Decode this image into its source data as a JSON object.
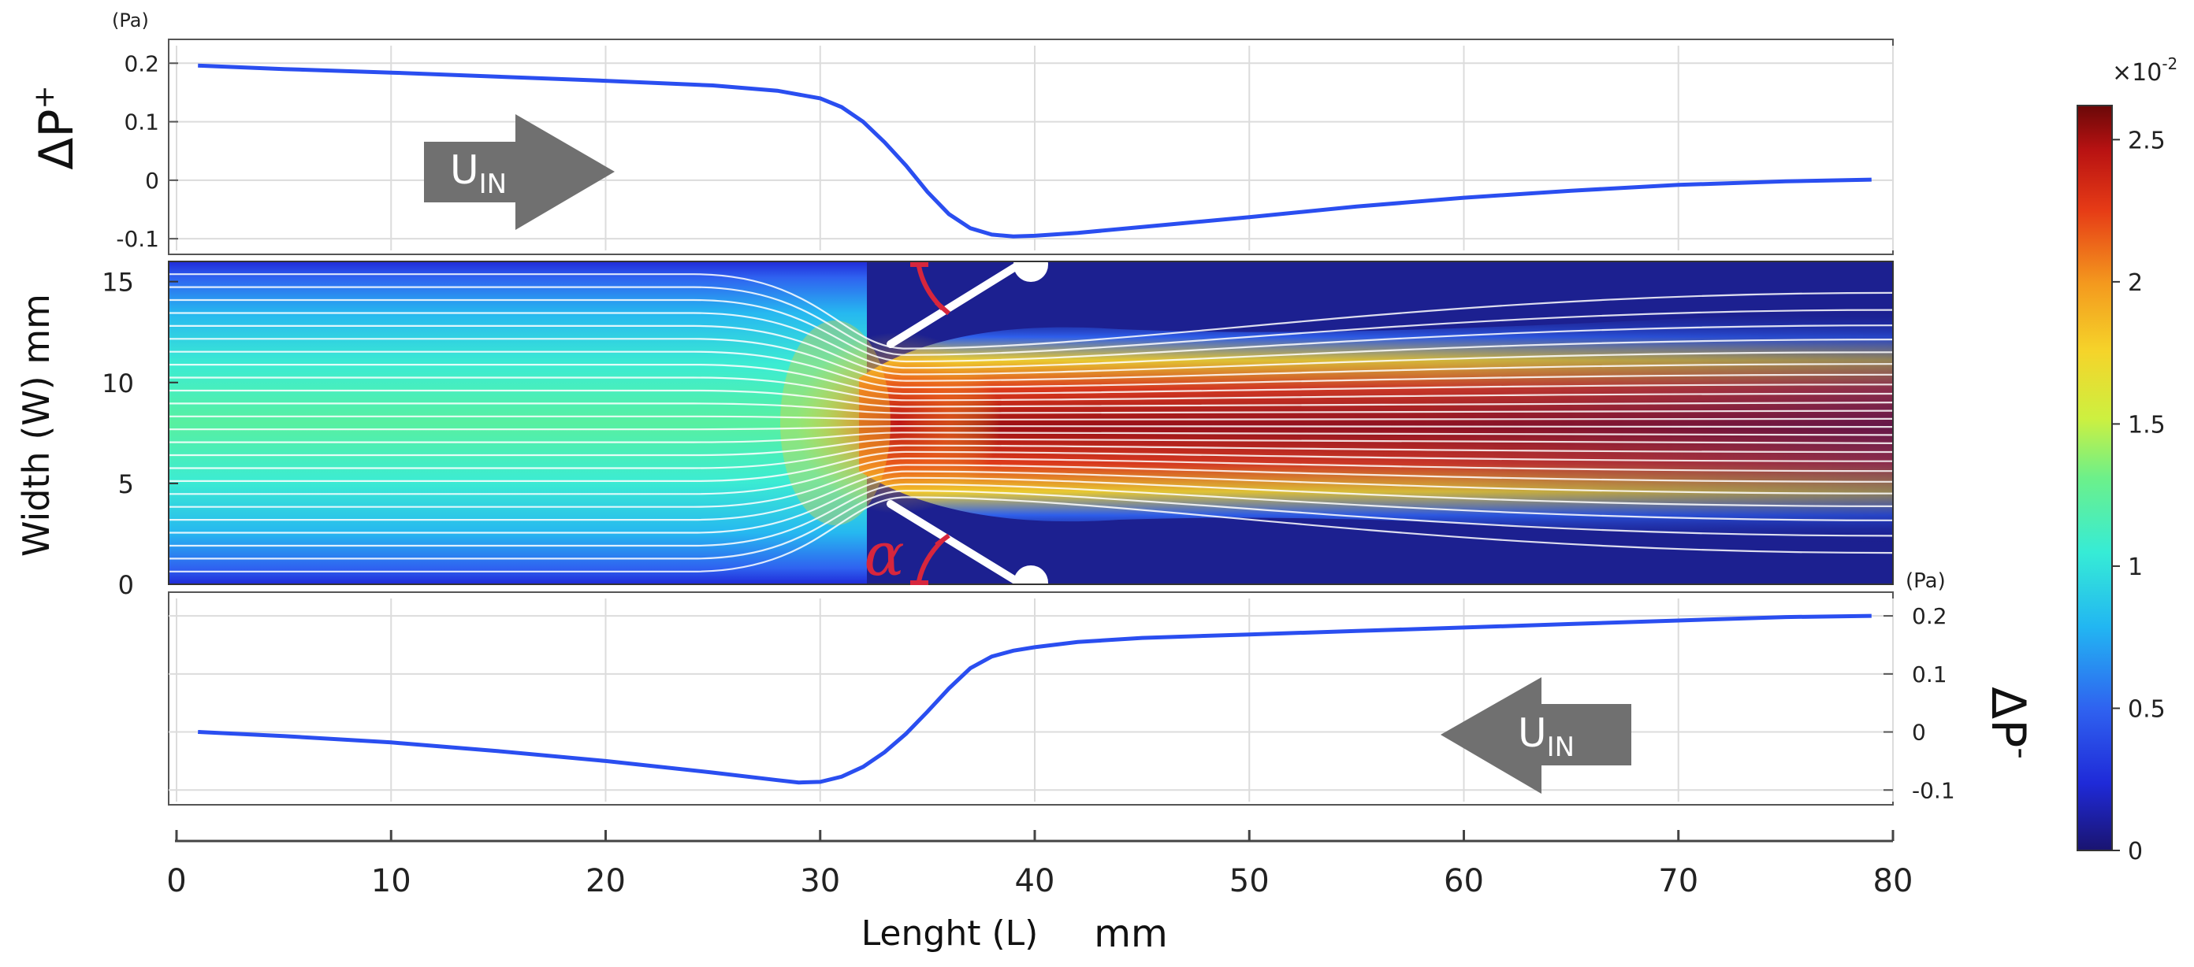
{
  "chart_data": [
    {
      "type": "line",
      "panel": "upper",
      "ylabel": "ΔP",
      "ylabel_sup": "+",
      "yunit": "(Pa)",
      "ylim": [
        -0.12,
        0.23
      ],
      "yticks": [
        -0.1,
        0,
        0.1,
        0.2
      ],
      "ytick_labels": [
        "-0.1",
        "0",
        "0.1",
        "0.2"
      ],
      "grid": true,
      "arrow": {
        "label": "U",
        "sub": "IN",
        "direction": "right"
      },
      "series": [
        {
          "x": [
            1,
            5,
            10,
            15,
            20,
            25,
            28,
            30,
            31,
            32,
            33,
            34,
            35,
            36,
            37,
            38,
            39,
            40,
            42,
            45,
            50,
            55,
            60,
            65,
            70,
            75,
            79
          ],
          "y": [
            0.196,
            0.19,
            0.184,
            0.177,
            0.17,
            0.162,
            0.153,
            0.14,
            0.125,
            0.1,
            0.065,
            0.025,
            -0.02,
            -0.058,
            -0.082,
            -0.093,
            -0.096,
            -0.095,
            -0.09,
            -0.08,
            -0.063,
            -0.045,
            -0.03,
            -0.018,
            -0.008,
            -0.002,
            0.001
          ]
        }
      ],
      "color": "#2a4ef0"
    },
    {
      "type": "heatmap",
      "panel": "middle",
      "ylabel": "Width (W)  mm",
      "ylim": [
        0,
        16
      ],
      "yticks": [
        0,
        5,
        10,
        15
      ],
      "ytick_labels": [
        "0",
        "5",
        "10",
        "15"
      ],
      "annotation": "α",
      "colorbar": {
        "ticks": [
          0,
          0.5,
          1,
          1.5,
          2,
          2.5
        ],
        "tick_labels": [
          "0",
          "0.5",
          "1",
          "1.5",
          "2",
          "2.5"
        ],
        "max": 2.62,
        "multiplier_base": "×10",
        "multiplier_exp": "-2"
      }
    },
    {
      "type": "line",
      "panel": "lower",
      "ylabel": "ΔP",
      "ylabel_sup": "-",
      "yunit": "(Pa)",
      "ylim": [
        -0.12,
        0.23
      ],
      "yticks": [
        -0.1,
        0,
        0.1,
        0.2
      ],
      "ytick_labels": [
        "-0.1",
        "0",
        "0.1",
        "0.2"
      ],
      "grid": true,
      "arrow": {
        "label": "U",
        "sub": "IN",
        "direction": "left"
      },
      "series": [
        {
          "x": [
            1,
            5,
            10,
            15,
            20,
            25,
            28,
            29,
            30,
            31,
            32,
            33,
            34,
            35,
            36,
            37,
            38,
            39,
            40,
            42,
            45,
            50,
            55,
            60,
            65,
            70,
            75,
            79
          ],
          "y": [
            0.0,
            -0.007,
            -0.018,
            -0.033,
            -0.05,
            -0.07,
            -0.083,
            -0.087,
            -0.086,
            -0.077,
            -0.06,
            -0.035,
            -0.003,
            0.035,
            0.075,
            0.11,
            0.13,
            0.14,
            0.146,
            0.155,
            0.162,
            0.168,
            0.174,
            0.18,
            0.186,
            0.192,
            0.198,
            0.2
          ]
        }
      ],
      "color": "#2a4ef0"
    }
  ],
  "xaxis": {
    "label": "Lenght (L)",
    "unit": "mm",
    "xlim": [
      0,
      80
    ],
    "ticks": [
      0,
      10,
      20,
      30,
      40,
      50,
      60,
      70,
      80
    ],
    "tick_labels": [
      "0",
      "10",
      "20",
      "30",
      "40",
      "50",
      "60",
      "70",
      "80"
    ]
  }
}
